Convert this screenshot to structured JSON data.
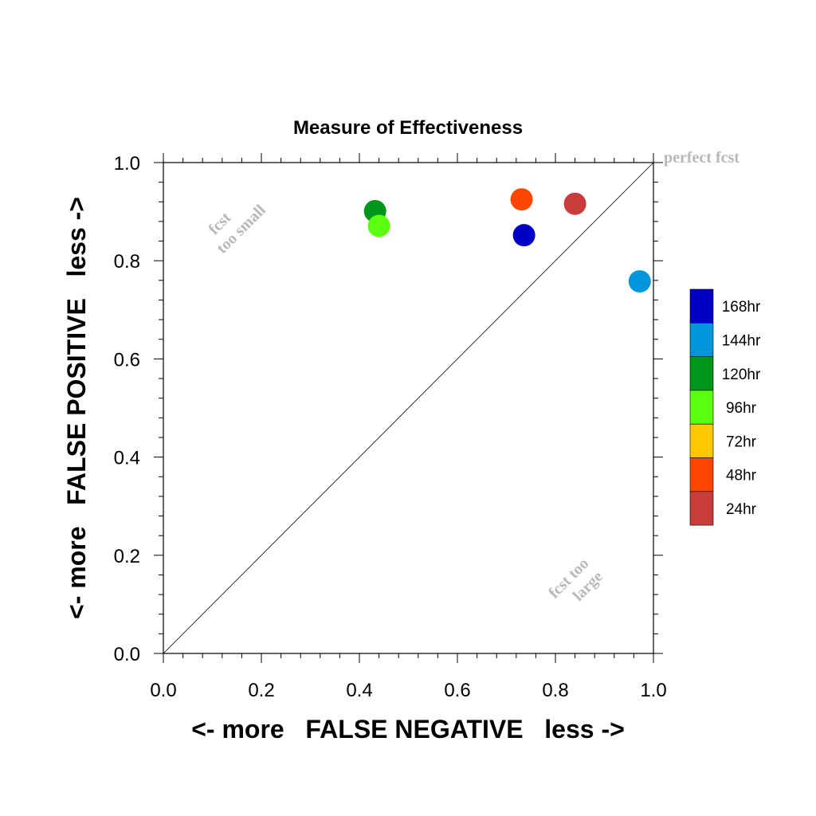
{
  "chart_data": {
    "type": "scatter",
    "title": "Measure of Effectiveness",
    "xlabel": "<- more   FALSE NEGATIVE   less ->",
    "ylabel": "<- more   FALSE POSITIVE   less ->",
    "xlim": [
      0.0,
      1.0
    ],
    "ylim": [
      0.0,
      1.0
    ],
    "xticks": [
      "0.0",
      "0.2",
      "0.4",
      "0.6",
      "0.8",
      "1.0"
    ],
    "yticks": [
      "0.0",
      "0.2",
      "0.4",
      "0.6",
      "0.8",
      "1.0"
    ],
    "grid": false,
    "reference_line": "diagonal",
    "annotations": {
      "perfect": "perfect fcst",
      "too_small": [
        "fcst",
        "too small"
      ],
      "too_large": [
        "fcst too",
        "large"
      ]
    },
    "legend": {
      "placement": "right",
      "entries": [
        {
          "label": "168hr",
          "color": "#0000c4"
        },
        {
          "label": "144hr",
          "color": "#0096dc"
        },
        {
          "label": "120hr",
          "color": "#009619"
        },
        {
          "label": "96hr",
          "color": "#5aff10"
        },
        {
          "label": "72hr",
          "color": "#ffc800"
        },
        {
          "label": "48hr",
          "color": "#ff4600"
        },
        {
          "label": "24hr",
          "color": "#c83c3c"
        }
      ]
    },
    "series": [
      {
        "name": "168hr",
        "color": "#0000c4",
        "x": 0.736,
        "y": 0.852
      },
      {
        "name": "144hr",
        "color": "#0096dc",
        "x": 0.972,
        "y": 0.758
      },
      {
        "name": "120hr",
        "color": "#009619",
        "x": 0.432,
        "y": 0.901
      },
      {
        "name": "96hr",
        "color": "#5aff10",
        "x": 0.44,
        "y": 0.871
      },
      {
        "name": "48hr",
        "color": "#ff4600",
        "x": 0.731,
        "y": 0.925
      },
      {
        "name": "24hr",
        "color": "#c83c3c",
        "x": 0.84,
        "y": 0.916
      }
    ]
  }
}
